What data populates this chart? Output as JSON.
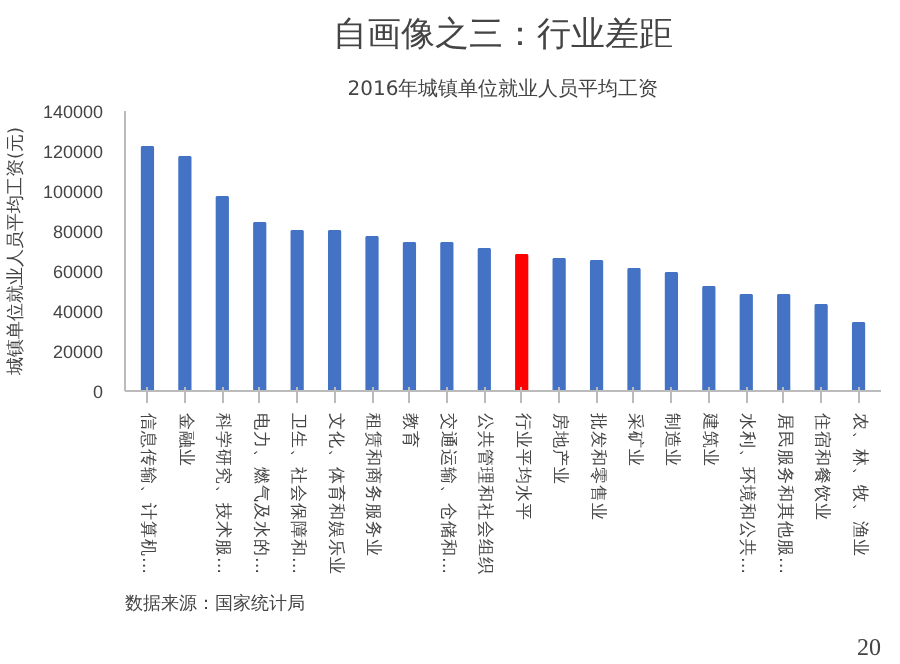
{
  "chart_data": {
    "type": "bar",
    "title": "自画像之三：行业差距",
    "subtitle": "2016年城镇单位就业人员平均工资",
    "ylabel": "城镇单位就业人员平均工资(元)",
    "categories": [
      "信息传输、计算机…",
      "金融业",
      "科学研究、技术服…",
      "电力、燃气及水的…",
      "卫生、社会保障和…",
      "文化、体育和娱乐业",
      "租赁和商务服务业",
      "教育",
      "交通运输、仓储和…",
      "公共管理和社会组织",
      "行业平均水平",
      "房地产业",
      "批发和零售业",
      "采矿业",
      "制造业",
      "建筑业",
      "水利、环境和公共…",
      "居民服务和其他服…",
      "住宿和餐饮业",
      "农、林、牧、渔业"
    ],
    "values": [
      122000,
      117000,
      97000,
      84000,
      80000,
      80000,
      77000,
      74000,
      74000,
      71000,
      68000,
      66000,
      65000,
      61000,
      59000,
      52000,
      48000,
      48000,
      43000,
      34000
    ],
    "colors": [
      "#4472c4",
      "#4472c4",
      "#4472c4",
      "#4472c4",
      "#4472c4",
      "#4472c4",
      "#4472c4",
      "#4472c4",
      "#4472c4",
      "#4472c4",
      "#ff0000",
      "#4472c4",
      "#4472c4",
      "#4472c4",
      "#4472c4",
      "#4472c4",
      "#4472c4",
      "#4472c4",
      "#4472c4",
      "#4472c4"
    ],
    "ylim": [
      0,
      140000
    ],
    "yticks": [
      0,
      20000,
      40000,
      60000,
      80000,
      100000,
      120000,
      140000
    ],
    "grid": false,
    "annotations": [
      "数据来源：国家统计局",
      "20"
    ]
  }
}
